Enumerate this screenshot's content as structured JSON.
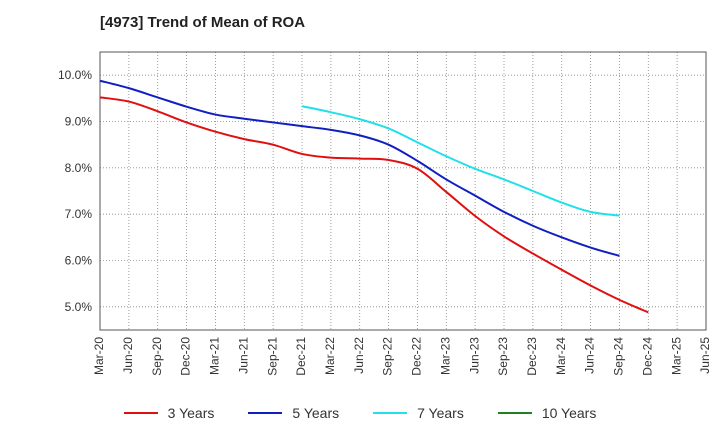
{
  "chart_data": {
    "type": "line",
    "title": "[4973]  Trend of Mean of ROA",
    "xlabel": "",
    "ylabel": "",
    "ylim": [
      4.5,
      10.5
    ],
    "y_ticks": [
      5.0,
      6.0,
      7.0,
      8.0,
      9.0,
      10.0
    ],
    "y_tick_labels": [
      "5.0%",
      "6.0%",
      "7.0%",
      "8.0%",
      "9.0%",
      "10.0%"
    ],
    "categories": [
      "Mar-20",
      "Jun-20",
      "Sep-20",
      "Dec-20",
      "Mar-21",
      "Jun-21",
      "Sep-21",
      "Dec-21",
      "Mar-22",
      "Jun-22",
      "Sep-22",
      "Dec-22",
      "Mar-23",
      "Jun-23",
      "Sep-23",
      "Dec-23",
      "Mar-24",
      "Jun-24",
      "Sep-24",
      "Dec-24",
      "Mar-25",
      "Jun-25"
    ],
    "grid": true,
    "legend_position": "bottom",
    "series": [
      {
        "name": "3 Years",
        "color": "#e01010",
        "values": [
          9.52,
          9.43,
          9.22,
          8.98,
          8.78,
          8.62,
          8.5,
          8.3,
          8.22,
          8.2,
          8.17,
          7.98,
          7.48,
          6.96,
          6.52,
          6.15,
          5.8,
          5.46,
          5.15,
          4.88,
          null,
          null
        ]
      },
      {
        "name": "5 Years",
        "color": "#1020c0",
        "values": [
          9.88,
          9.72,
          9.52,
          9.32,
          9.15,
          9.06,
          8.98,
          8.9,
          8.82,
          8.7,
          8.5,
          8.15,
          7.75,
          7.4,
          7.05,
          6.75,
          6.5,
          6.28,
          6.1,
          null,
          null,
          null
        ]
      },
      {
        "name": "7 Years",
        "color": "#20e0e8",
        "values": [
          null,
          null,
          null,
          null,
          null,
          null,
          null,
          9.33,
          9.2,
          9.05,
          8.85,
          8.55,
          8.25,
          7.98,
          7.75,
          7.5,
          7.25,
          7.05,
          6.97,
          null,
          null,
          null
        ]
      },
      {
        "name": "10 Years",
        "color": "#208020",
        "values": [
          null,
          null,
          null,
          null,
          null,
          null,
          null,
          null,
          null,
          null,
          null,
          null,
          null,
          null,
          null,
          null,
          null,
          null,
          null,
          null,
          null,
          null
        ]
      }
    ]
  }
}
